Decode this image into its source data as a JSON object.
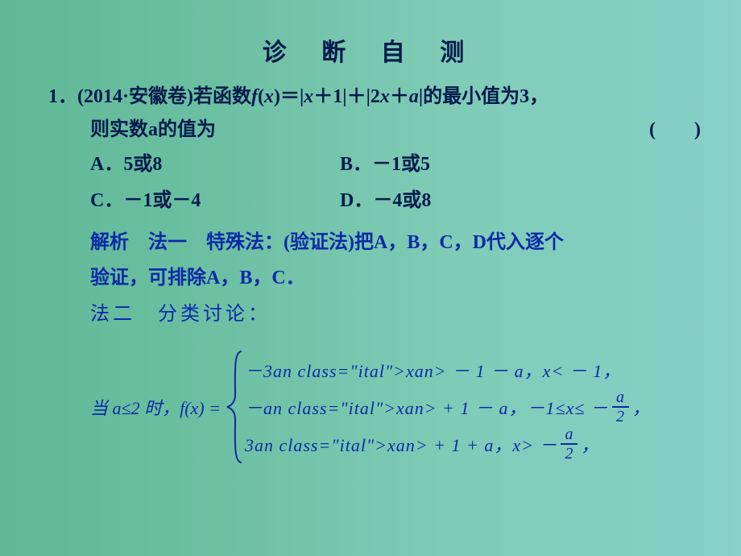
{
  "colors": {
    "text_main": "#001a4d",
    "text_explain": "#0b2aa8",
    "bg_gradient_from": "#5fb896",
    "bg_gradient_to": "#88d0c8"
  },
  "typography": {
    "title_fontsize": 30,
    "body_fontsize": 24,
    "formula_fontsize": 22
  },
  "title": "诊 断 自 测",
  "question": {
    "number": "1．",
    "source": "(2014·安徽卷)",
    "stem_line1": "若函数f(x)＝|x＋1|＋|2x＋a|的最小值为3，",
    "stem_line2": "则实数a的值为",
    "blank": "(　　)"
  },
  "options": {
    "A": "A．5或8",
    "B": "B．－1或5",
    "C": "C．－1或－4",
    "D": "D．－4或8"
  },
  "explain": {
    "label": "解析",
    "method1_label": "法一　特殊法：",
    "method1_text1": "(验证法)把A，B，C，D代入逐个",
    "method1_text2": "验证，可排除A，B，C．",
    "method2_label": "法二",
    "method2_text": "分类讨论："
  },
  "formula": {
    "lead_prefix": "当 ",
    "lead_cond": "a≤2",
    "lead_mid": " 时，",
    "lead_fx": "f(x) = ",
    "cases": [
      {
        "expr": "－3x － 1 － a，",
        "cond_prefix": "x< － 1，",
        "has_frac": false
      },
      {
        "expr": "－x + 1 － a，",
        "cond_prefix": "－1≤x≤ －",
        "frac_num": "a",
        "frac_den": "2",
        "tail": "，",
        "has_frac": true
      },
      {
        "expr": "3x + 1 + a，",
        "cond_prefix": "x> －",
        "frac_num": "a",
        "frac_den": "2",
        "tail": "，",
        "has_frac": true
      }
    ]
  }
}
